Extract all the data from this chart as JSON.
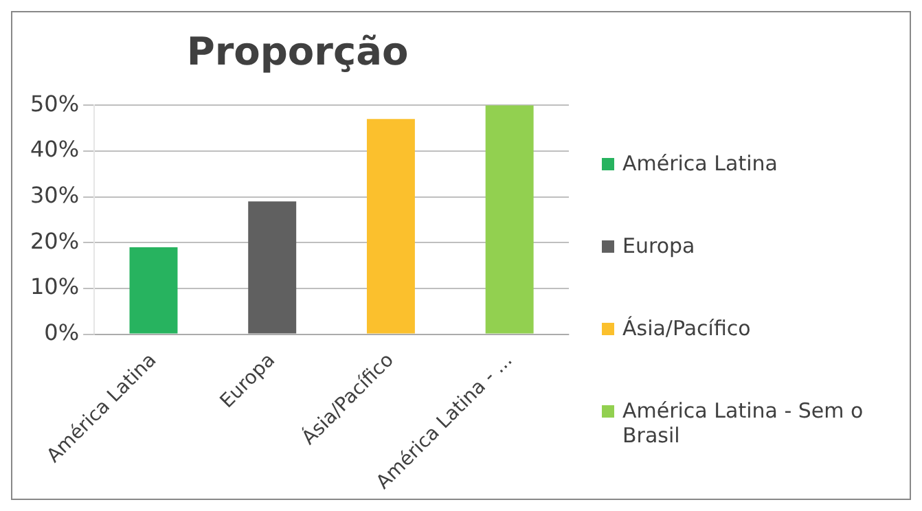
{
  "chart_data": {
    "type": "bar",
    "title": "Proporção",
    "categories": [
      "América Latina",
      "Europa",
      "Ásia/Pacífico",
      "América Latina - ..."
    ],
    "series": [
      {
        "name": "América Latina",
        "color": "#27b35f",
        "values": [
          19,
          null,
          null,
          null
        ]
      },
      {
        "name": "Europa",
        "color": "#606060",
        "values": [
          null,
          29,
          null,
          null
        ]
      },
      {
        "name": "Ásia/Pacífico",
        "color": "#fbc02d",
        "values": [
          null,
          null,
          47,
          null
        ]
      },
      {
        "name": "América Latina - Sem o Brasil",
        "color": "#92d050",
        "values": [
          null,
          null,
          null,
          50
        ]
      }
    ],
    "ylim": [
      0,
      50
    ],
    "yticks": [
      {
        "value": 0,
        "label": "0%"
      },
      {
        "value": 10,
        "label": "10%"
      },
      {
        "value": 20,
        "label": "20%"
      },
      {
        "value": 30,
        "label": "30%"
      },
      {
        "value": 40,
        "label": "40%"
      },
      {
        "value": 50,
        "label": "50%"
      }
    ],
    "grid": "y",
    "legend": "right"
  }
}
